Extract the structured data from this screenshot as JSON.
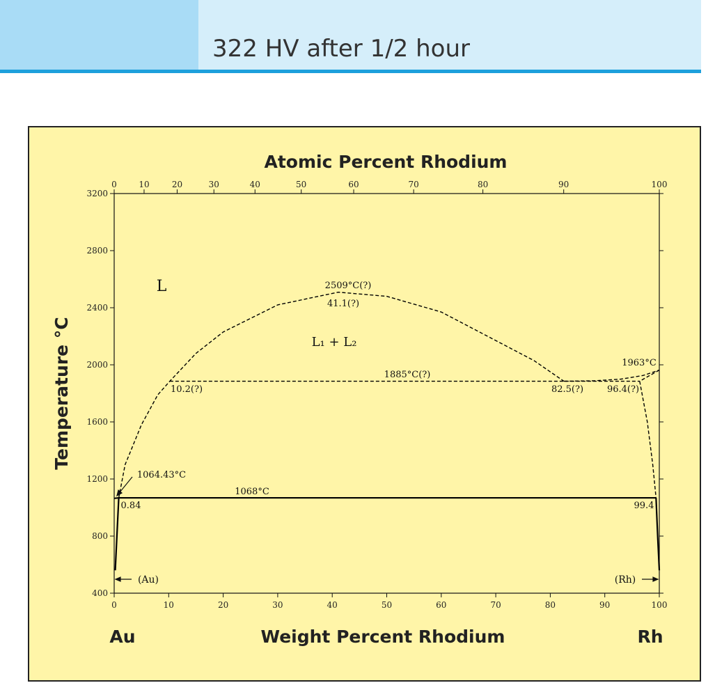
{
  "header": {
    "title": "322 HV after 1/2 hour"
  },
  "chart_data": {
    "type": "phase-diagram",
    "x2_title": "Atomic Percent Rhodium",
    "x_title": "Weight Percent Rhodium",
    "y_title": "Temperature °C",
    "left_element": "Au",
    "right_element": "Rh",
    "xlim": [
      0,
      100
    ],
    "xticks": [
      0,
      10,
      20,
      30,
      40,
      50,
      60,
      70,
      80,
      90,
      100
    ],
    "x2lim": [
      0,
      100
    ],
    "x2ticks": [
      0,
      10,
      20,
      30,
      40,
      50,
      60,
      70,
      80,
      90,
      100
    ],
    "ylim": [
      400,
      3200
    ],
    "yticks": [
      400,
      800,
      1200,
      1600,
      2000,
      2400,
      2800,
      3200
    ],
    "series": [
      {
        "color": "#000000",
        "dash": true,
        "x": [
          0.84,
          2,
          5,
          8,
          10.2,
          15,
          20,
          30,
          41.1,
          50,
          60,
          70,
          77,
          82.5
        ],
        "values": [
          1068,
          1300,
          1580,
          1790,
          1885,
          2080,
          2230,
          2420,
          2509,
          2480,
          2370,
          2170,
          2030,
          1885
        ]
      },
      {
        "color": "#000000",
        "dash": true,
        "x": [
          10.2,
          96.4
        ],
        "values": [
          1885,
          1885
        ]
      },
      {
        "color": "#000000",
        "dash": true,
        "x": [
          82.5,
          88,
          93,
          97,
          100
        ],
        "values": [
          1885,
          1888,
          1900,
          1925,
          1963
        ]
      },
      {
        "color": "#000000",
        "dash": true,
        "x": [
          100,
          98,
          96.4
        ],
        "values": [
          1963,
          1920,
          1885
        ]
      },
      {
        "color": "#000000",
        "dash": true,
        "x": [
          96.4,
          97.8,
          98.8,
          99.4
        ],
        "values": [
          1885,
          1600,
          1300,
          1068
        ]
      },
      {
        "color": "#000000",
        "dash": false,
        "x": [
          99.4,
          99.7,
          100
        ],
        "values": [
          1068,
          800,
          560
        ]
      },
      {
        "color": "#000000",
        "dash": false,
        "x": [
          0.84,
          99.4
        ],
        "values": [
          1068,
          1068
        ]
      },
      {
        "color": "#000000",
        "dash": false,
        "x": [
          0,
          0.84
        ],
        "values": [
          1064.43,
          1068
        ]
      },
      {
        "color": "#000000",
        "dash": false,
        "x": [
          0.84,
          0.5,
          0.2
        ],
        "values": [
          1068,
          800,
          560
        ]
      }
    ],
    "annotations": [
      "L",
      "L₁ + L₂",
      "2509°C(?)",
      "41.1(?)",
      "1885°C(?)",
      "10.2(?)",
      "82.5(?)",
      "96.4(?)",
      "1963°C",
      "1064.43°C",
      "1068°C",
      "0.84",
      "99.4",
      "(Au)",
      "(Rh)"
    ]
  }
}
